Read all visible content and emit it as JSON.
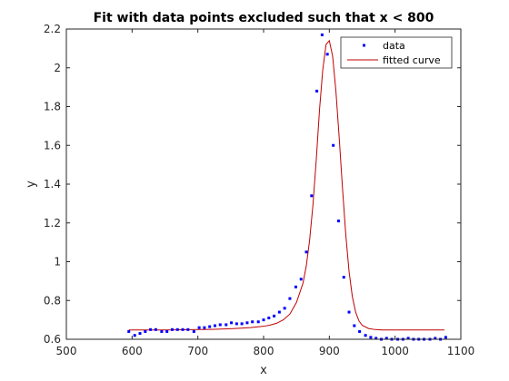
{
  "chart_data": {
    "type": "scatter",
    "title": "Fit with data points excluded such that x < 800",
    "xlabel": "x",
    "ylabel": "y",
    "xlim": [
      500,
      1100
    ],
    "ylim": [
      0.6,
      2.2
    ],
    "grid": false,
    "legend_position": "top-right",
    "x_ticks": [
      "500",
      "600",
      "700",
      "800",
      "900",
      "1000",
      "1100"
    ],
    "y_ticks": [
      "0.6",
      "0.8",
      "1",
      "1.2",
      "1.4",
      "1.6",
      "1.8",
      "2",
      "2.2"
    ],
    "series": [
      {
        "name": "data",
        "style": "points",
        "color": "#0000ff",
        "x": [
          595,
          604,
          612,
          620,
          628,
          636,
          645,
          653,
          661,
          669,
          677,
          685,
          694,
          702,
          710,
          718,
          726,
          734,
          743,
          751,
          759,
          767,
          775,
          783,
          792,
          800,
          808,
          816,
          824,
          832,
          840,
          849,
          857,
          865,
          873,
          881,
          889,
          897,
          906,
          914,
          922,
          930,
          938,
          946,
          955,
          963,
          971,
          979,
          987,
          995,
          1004,
          1012,
          1020,
          1028,
          1036,
          1044,
          1053,
          1061,
          1069,
          1077
        ],
        "y": [
          0.64,
          0.62,
          0.63,
          0.64,
          0.65,
          0.65,
          0.64,
          0.64,
          0.65,
          0.65,
          0.65,
          0.65,
          0.64,
          0.66,
          0.66,
          0.665,
          0.67,
          0.675,
          0.675,
          0.685,
          0.68,
          0.68,
          0.685,
          0.69,
          0.69,
          0.7,
          0.71,
          0.72,
          0.74,
          0.76,
          0.81,
          0.87,
          0.91,
          1.05,
          1.34,
          1.88,
          2.17,
          2.07,
          1.6,
          1.21,
          0.92,
          0.74,
          0.67,
          0.64,
          0.62,
          0.61,
          0.605,
          0.6,
          0.605,
          0.6,
          0.6,
          0.6,
          0.605,
          0.6,
          0.6,
          0.6,
          0.6,
          0.605,
          0.6,
          0.61
        ]
      },
      {
        "name": "fitted curve",
        "style": "line",
        "color": "#c00000",
        "x": [
          595,
          620,
          650,
          680,
          700,
          720,
          740,
          760,
          780,
          800,
          810,
          820,
          830,
          840,
          850,
          860,
          865,
          870,
          875,
          880,
          885,
          890,
          895,
          900,
          905,
          910,
          915,
          920,
          925,
          930,
          935,
          940,
          945,
          950,
          960,
          970,
          980,
          1000,
          1040,
          1075
        ],
        "y": [
          0.648,
          0.648,
          0.648,
          0.649,
          0.65,
          0.651,
          0.653,
          0.656,
          0.66,
          0.667,
          0.673,
          0.683,
          0.7,
          0.73,
          0.79,
          0.89,
          0.98,
          1.11,
          1.29,
          1.52,
          1.78,
          1.99,
          2.12,
          2.14,
          2.06,
          1.88,
          1.64,
          1.38,
          1.14,
          0.95,
          0.82,
          0.74,
          0.695,
          0.672,
          0.655,
          0.65,
          0.648,
          0.648,
          0.648,
          0.648
        ]
      }
    ]
  }
}
